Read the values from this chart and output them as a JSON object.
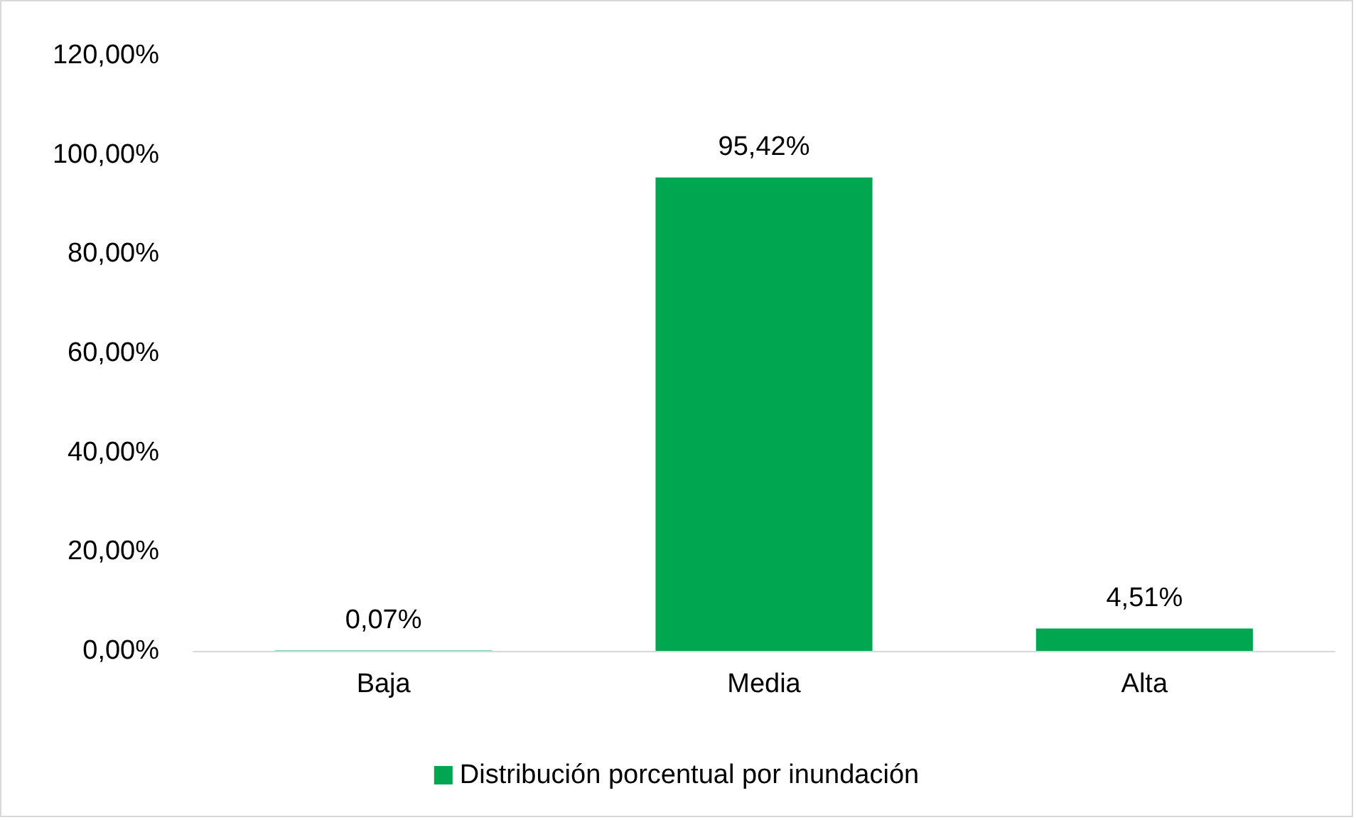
{
  "chart_data": {
    "type": "bar",
    "categories": [
      "Baja",
      "Media",
      "Alta"
    ],
    "series": [
      {
        "name": "Distribución porcentual por inundación",
        "color": "#00a650",
        "values": [
          0.07,
          95.42,
          4.51
        ],
        "value_labels": [
          "0,07%",
          "95,42%",
          "4,51%"
        ]
      }
    ],
    "ylim": [
      0,
      120
    ],
    "yticks": [
      {
        "value": 0,
        "label": "0,00%"
      },
      {
        "value": 20,
        "label": "20,00%"
      },
      {
        "value": 40,
        "label": "40,00%"
      },
      {
        "value": 60,
        "label": "60,00%"
      },
      {
        "value": 80,
        "label": "80,00%"
      },
      {
        "value": 100,
        "label": "100,00%"
      },
      {
        "value": 120,
        "label": "120,00%"
      }
    ],
    "grid": false,
    "legend": "bottom"
  }
}
